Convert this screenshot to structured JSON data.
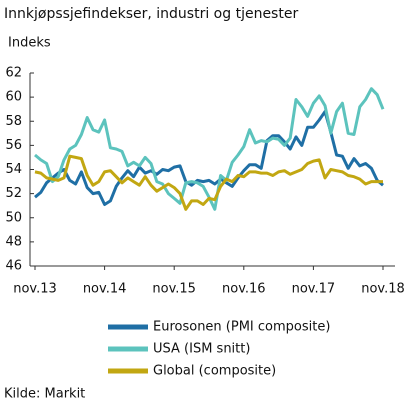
{
  "chart_data": {
    "type": "line",
    "title": "Innkjøpssjefindekser, industri og tjenester",
    "y_label": "Indeks",
    "source": "Kilde: Markit",
    "categories": [
      "nov.13",
      null,
      null,
      null,
      null,
      null,
      null,
      null,
      null,
      null,
      null,
      null,
      "nov.14",
      null,
      null,
      null,
      null,
      null,
      null,
      null,
      null,
      null,
      null,
      null,
      "nov.15",
      null,
      null,
      null,
      null,
      null,
      null,
      null,
      null,
      null,
      null,
      null,
      "nov.16",
      null,
      null,
      null,
      null,
      null,
      null,
      null,
      null,
      null,
      null,
      null,
      "nov.17",
      null,
      null,
      null,
      null,
      null,
      null,
      null,
      null,
      null,
      null,
      null,
      "nov.18"
    ],
    "ylim": [
      46,
      62
    ],
    "yticks": [
      46,
      48,
      50,
      52,
      54,
      56,
      58,
      60,
      62
    ],
    "legend": "bottom",
    "series": [
      {
        "name": "Eurosonen (PMI composite)",
        "color": "#1f6fa5",
        "values": [
          51.7,
          52.1,
          52.9,
          53.3,
          53.7,
          54.0,
          53.1,
          52.8,
          53.8,
          52.5,
          52.0,
          52.1,
          51.1,
          51.4,
          52.6,
          53.3,
          53.9,
          53.4,
          54.2,
          53.7,
          53.9,
          53.6,
          54.0,
          53.9,
          54.2,
          54.3,
          53.0,
          52.7,
          53.1,
          53.0,
          53.1,
          52.8,
          53.2,
          52.9,
          52.6,
          53.3,
          53.9,
          54.4,
          54.4,
          54.1,
          56.4,
          56.8,
          56.8,
          56.3,
          55.7,
          56.7,
          56.0,
          57.5,
          57.5,
          58.1,
          58.8,
          57.1,
          55.2,
          55.1,
          54.1,
          54.9,
          54.3,
          54.5,
          54.1,
          53.1,
          52.7
        ]
      },
      {
        "name": "USA (ISM snitt)",
        "color": "#5cc3bd",
        "values": [
          55.2,
          54.8,
          54.5,
          53.0,
          53.4,
          54.8,
          55.7,
          56.0,
          56.9,
          58.3,
          57.3,
          57.1,
          58.1,
          55.8,
          55.7,
          55.5,
          54.3,
          54.6,
          54.3,
          55.0,
          54.5,
          53.0,
          52.8,
          52.0,
          51.6,
          51.2,
          52.9,
          53.0,
          52.9,
          52.6,
          51.7,
          50.7,
          53.5,
          53.1,
          54.6,
          55.2,
          55.9,
          57.3,
          56.2,
          56.4,
          56.3,
          56.6,
          56.5,
          56.0,
          56.6,
          59.8,
          59.2,
          58.4,
          59.5,
          60.1,
          59.3,
          57.0,
          58.8,
          59.5,
          57.0,
          56.9,
          59.2,
          59.8,
          60.7,
          60.2,
          59.0
        ]
      },
      {
        "name": "Global (composite)",
        "color": "#c2a712",
        "values": [
          53.8,
          53.7,
          53.3,
          53.2,
          53.1,
          53.3,
          55.1,
          55.0,
          54.9,
          53.5,
          52.7,
          53.0,
          53.8,
          53.9,
          53.4,
          52.9,
          53.3,
          53.0,
          52.7,
          53.4,
          52.7,
          52.2,
          52.5,
          52.8,
          52.5,
          52.0,
          50.7,
          51.4,
          51.4,
          51.1,
          51.6,
          51.5,
          52.6,
          53.2,
          53.0,
          53.5,
          53.4,
          53.8,
          53.8,
          53.7,
          53.7,
          53.5,
          53.8,
          53.9,
          53.6,
          53.8,
          54.0,
          54.5,
          54.7,
          54.8,
          53.3,
          54.0,
          53.9,
          53.8,
          53.5,
          53.4,
          53.2,
          52.8,
          53.0,
          53.0,
          53.0
        ]
      }
    ]
  }
}
